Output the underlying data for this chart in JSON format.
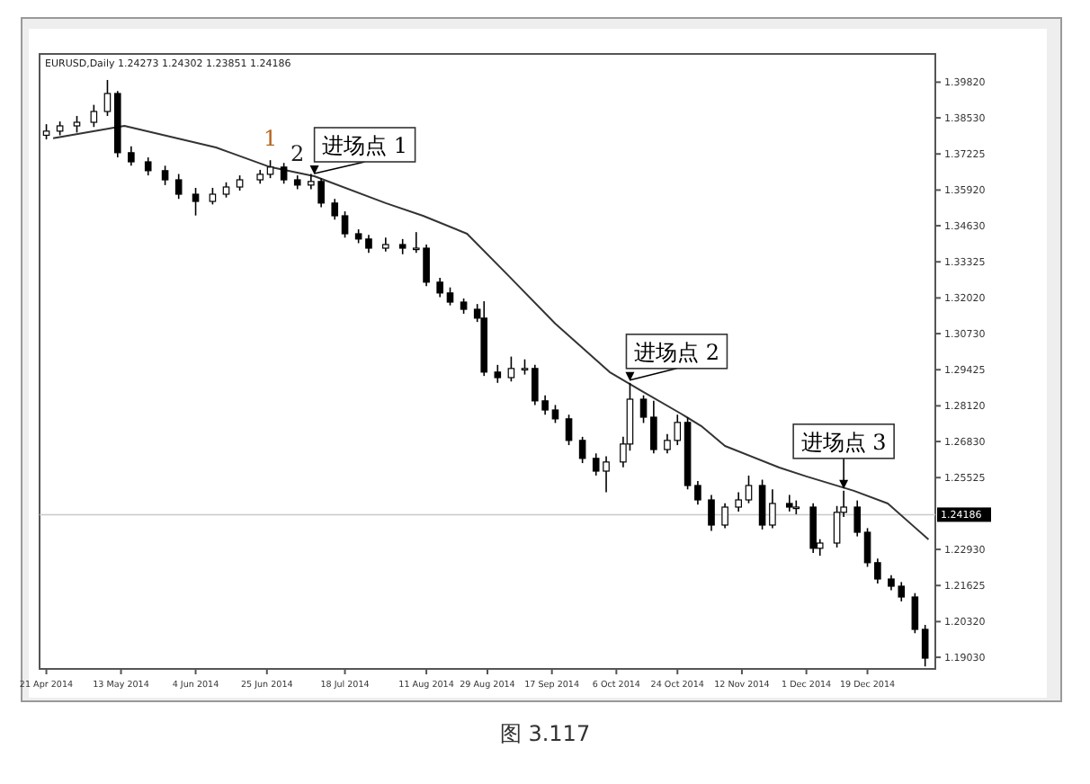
{
  "chart_data": {
    "type": "candlestick",
    "subtitle": "EURUSD,Daily 1.24273 1.24302 1.23851 1.24186",
    "xlim": [
      "2014-04-19",
      "2015-01-08"
    ],
    "ylim": [
      1.1861,
      1.4084
    ],
    "xticks": [
      {
        "value": "2014-04-21",
        "label": "21 Apr 2014"
      },
      {
        "value": "2014-05-13",
        "label": "13 May 2014"
      },
      {
        "value": "2014-06-04",
        "label": "4 Jun 2014"
      },
      {
        "value": "2014-06-25",
        "label": "25 Jun 2014"
      },
      {
        "value": "2014-07-18",
        "label": "18 Jul 2014"
      },
      {
        "value": "2014-08-11",
        "label": "11 Aug 2014"
      },
      {
        "value": "2014-08-29",
        "label": "29 Aug 2014"
      },
      {
        "value": "2014-09-17",
        "label": "17 Sep 2014"
      },
      {
        "value": "2014-10-06",
        "label": "6 Oct 2014"
      },
      {
        "value": "2014-10-24",
        "label": "24 Oct 2014"
      },
      {
        "value": "2014-11-12",
        "label": "12 Nov 2014"
      },
      {
        "value": "2014-12-01",
        "label": "1 Dec 2014"
      },
      {
        "value": "2014-12-19",
        "label": "19 Dec 2014"
      }
    ],
    "yticks": [
      {
        "value": 1.3982,
        "label": "1.39820"
      },
      {
        "value": 1.3853,
        "label": "1.38530"
      },
      {
        "value": 1.37225,
        "label": "1.37225"
      },
      {
        "value": 1.3592,
        "label": "1.35920"
      },
      {
        "value": 1.3463,
        "label": "1.34630"
      },
      {
        "value": 1.33325,
        "label": "1.33325"
      },
      {
        "value": 1.3202,
        "label": "1.32020"
      },
      {
        "value": 1.3073,
        "label": "1.30730"
      },
      {
        "value": 1.29425,
        "label": "1.29425"
      },
      {
        "value": 1.2812,
        "label": "1.28120"
      },
      {
        "value": 1.2683,
        "label": "1.26830"
      },
      {
        "value": 1.25525,
        "label": "1.25525"
      },
      {
        "value": 1.2293,
        "label": "1.22930"
      },
      {
        "value": 1.21625,
        "label": "1.21625"
      },
      {
        "value": 1.2032,
        "label": "1.20320"
      },
      {
        "value": 1.1903,
        "label": "1.19030"
      }
    ],
    "ref_lines": [
      {
        "axis": "y",
        "value": 1.24186,
        "label": "1.24186",
        "color": "#c8c8c8"
      }
    ],
    "series": [
      {
        "type": "candlestick",
        "color": "#000000",
        "x": [
          "2014-04-21",
          "2014-04-25",
          "2014-04-30",
          "2014-05-05",
          "2014-05-09",
          "2014-05-12",
          "2014-05-16",
          "2014-05-21",
          "2014-05-26",
          "2014-05-30",
          "2014-06-04",
          "2014-06-09",
          "2014-06-13",
          "2014-06-17",
          "2014-06-23",
          "2014-06-26",
          "2014-06-30",
          "2014-07-04",
          "2014-07-08",
          "2014-07-11",
          "2014-07-15",
          "2014-07-18",
          "2014-07-22",
          "2014-07-25",
          "2014-07-30",
          "2014-08-04",
          "2014-08-08",
          "2014-08-11",
          "2014-08-15",
          "2014-08-18",
          "2014-08-22",
          "2014-08-26",
          "2014-08-28",
          "2014-09-01",
          "2014-09-05",
          "2014-09-09",
          "2014-09-12",
          "2014-09-15",
          "2014-09-18",
          "2014-09-22",
          "2014-09-26",
          "2014-09-30",
          "2014-10-03",
          "2014-10-08",
          "2014-10-10",
          "2014-10-14",
          "2014-10-17",
          "2014-10-21",
          "2014-10-24",
          "2014-10-27",
          "2014-10-30",
          "2014-11-03",
          "2014-11-07",
          "2014-11-11",
          "2014-11-14",
          "2014-11-18",
          "2014-11-21",
          "2014-11-26",
          "2014-11-28",
          "2014-12-03",
          "2014-12-05",
          "2014-12-10",
          "2014-12-12",
          "2014-12-16",
          "2014-12-19",
          "2014-12-22",
          "2014-12-26",
          "2014-12-29",
          "2015-01-02",
          "2015-01-05"
        ],
        "ohlc": [
          [
            1.379,
            1.383,
            1.3775,
            1.3805
          ],
          [
            1.3805,
            1.384,
            1.379,
            1.3824
          ],
          [
            1.3824,
            1.386,
            1.38,
            1.3837
          ],
          [
            1.3837,
            1.39,
            1.382,
            1.3876
          ],
          [
            1.3876,
            1.399,
            1.386,
            1.3941
          ],
          [
            1.3941,
            1.395,
            1.371,
            1.3727
          ],
          [
            1.3727,
            1.375,
            1.368,
            1.3694
          ],
          [
            1.3694,
            1.371,
            1.3645,
            1.3662
          ],
          [
            1.3662,
            1.368,
            1.361,
            1.3629
          ],
          [
            1.3629,
            1.365,
            1.356,
            1.3577
          ],
          [
            1.3577,
            1.36,
            1.35,
            1.3551
          ],
          [
            1.3551,
            1.36,
            1.354,
            1.3577
          ],
          [
            1.3577,
            1.362,
            1.3565,
            1.3603
          ],
          [
            1.3603,
            1.3645,
            1.359,
            1.3629
          ],
          [
            1.3629,
            1.3665,
            1.3615,
            1.3649
          ],
          [
            1.3649,
            1.37,
            1.3635,
            1.3675
          ],
          [
            1.3675,
            1.369,
            1.3615,
            1.3629
          ],
          [
            1.3629,
            1.3645,
            1.3595,
            1.361
          ],
          [
            1.361,
            1.365,
            1.3595,
            1.3623
          ],
          [
            1.3623,
            1.3635,
            1.353,
            1.3545
          ],
          [
            1.3545,
            1.356,
            1.3485,
            1.3499
          ],
          [
            1.3499,
            1.3515,
            1.342,
            1.3434
          ],
          [
            1.3434,
            1.345,
            1.34,
            1.3415
          ],
          [
            1.3415,
            1.343,
            1.3365,
            1.3382
          ],
          [
            1.3382,
            1.342,
            1.337,
            1.3395
          ],
          [
            1.3395,
            1.3415,
            1.336,
            1.3382
          ],
          [
            1.3382,
            1.344,
            1.3365,
            1.3382
          ],
          [
            1.3382,
            1.3395,
            1.3245,
            1.3259
          ],
          [
            1.3259,
            1.3275,
            1.3205,
            1.322
          ],
          [
            1.322,
            1.324,
            1.3175,
            1.3187
          ],
          [
            1.3187,
            1.32,
            1.3145,
            1.3161
          ],
          [
            1.3161,
            1.318,
            1.3115,
            1.3129
          ],
          [
            1.3129,
            1.319,
            1.292,
            1.2934
          ],
          [
            1.2934,
            1.296,
            1.2895,
            1.2914
          ],
          [
            1.2914,
            1.299,
            1.29,
            1.2947
          ],
          [
            1.2947,
            1.298,
            1.2925,
            1.2947
          ],
          [
            1.2947,
            1.296,
            1.2815,
            1.283
          ],
          [
            1.283,
            1.285,
            1.278,
            1.2797
          ],
          [
            1.2797,
            1.2815,
            1.275,
            1.2765
          ],
          [
            1.2765,
            1.278,
            1.267,
            1.2687
          ],
          [
            1.2687,
            1.27,
            1.2605,
            1.2622
          ],
          [
            1.2622,
            1.264,
            1.256,
            1.2576
          ],
          [
            1.2576,
            1.263,
            1.25,
            1.2609
          ],
          [
            1.2609,
            1.27,
            1.259,
            1.2674
          ],
          [
            1.2674,
            1.2895,
            1.265,
            1.2836
          ],
          [
            1.2836,
            1.285,
            1.275,
            1.2771
          ],
          [
            1.2771,
            1.283,
            1.264,
            1.2654
          ],
          [
            1.2654,
            1.271,
            1.264,
            1.2687
          ],
          [
            1.2687,
            1.278,
            1.267,
            1.2752
          ],
          [
            1.2752,
            1.277,
            1.251,
            1.2524
          ],
          [
            1.2524,
            1.254,
            1.2455,
            1.2472
          ],
          [
            1.2472,
            1.249,
            1.236,
            1.2381
          ],
          [
            1.2381,
            1.246,
            1.237,
            1.2446
          ],
          [
            1.2446,
            1.25,
            1.243,
            1.2472
          ],
          [
            1.2472,
            1.256,
            1.246,
            1.2524
          ],
          [
            1.2524,
            1.2545,
            1.2365,
            1.2381
          ],
          [
            1.2381,
            1.251,
            1.237,
            1.2459
          ],
          [
            1.2459,
            1.249,
            1.243,
            1.2446
          ],
          [
            1.2446,
            1.247,
            1.242,
            1.2446
          ],
          [
            1.2446,
            1.246,
            1.228,
            1.2297
          ],
          [
            1.2297,
            1.233,
            1.227,
            1.2316
          ],
          [
            1.2316,
            1.245,
            1.23,
            1.2427
          ],
          [
            1.2427,
            1.2505,
            1.241,
            1.2446
          ],
          [
            1.2446,
            1.247,
            1.234,
            1.2355
          ],
          [
            1.2355,
            1.237,
            1.223,
            1.2245
          ],
          [
            1.2245,
            1.226,
            1.217,
            1.2186
          ],
          [
            1.2186,
            1.22,
            1.2145,
            1.216
          ],
          [
            1.216,
            1.2175,
            1.2105,
            1.2121
          ],
          [
            1.2121,
            1.2135,
            1.199,
            1.2004
          ],
          [
            1.2004,
            1.202,
            1.187,
            1.19
          ]
        ]
      },
      {
        "type": "line",
        "color": "#333333",
        "x": [
          "2014-04-23",
          "2014-05-14",
          "2014-06-10",
          "2014-06-26",
          "2014-07-09",
          "2014-07-30",
          "2014-08-10",
          "2014-08-23",
          "2014-09-04",
          "2014-09-18",
          "2014-10-04",
          "2014-10-13",
          "2014-10-25",
          "2014-10-31",
          "2014-11-07",
          "2014-11-23",
          "2014-12-01",
          "2014-12-15",
          "2014-12-25",
          "2015-01-06"
        ],
        "values": [
          1.3779,
          1.3824,
          1.3746,
          1.3675,
          1.3642,
          1.3545,
          1.3499,
          1.3434,
          1.3285,
          1.3109,
          1.2934,
          1.2869,
          1.2784,
          1.2739,
          1.2667,
          1.2589,
          1.2557,
          1.2505,
          1.2459,
          1.2329
        ]
      }
    ],
    "annotations": [
      {
        "text": "1",
        "x": "2014-06-26",
        "y": 1.37
      },
      {
        "text": "2",
        "x": "2014-07-04",
        "y": 1.3645
      },
      {
        "text": "进场点 1",
        "x": "2014-07-09",
        "y": 1.3642
      },
      {
        "text": "进场点 2",
        "x": "2014-10-10",
        "y": 1.2895
      },
      {
        "text": "进场点 3",
        "x": "2014-12-12",
        "y": 1.2505
      },
      "图 3.117"
    ]
  }
}
